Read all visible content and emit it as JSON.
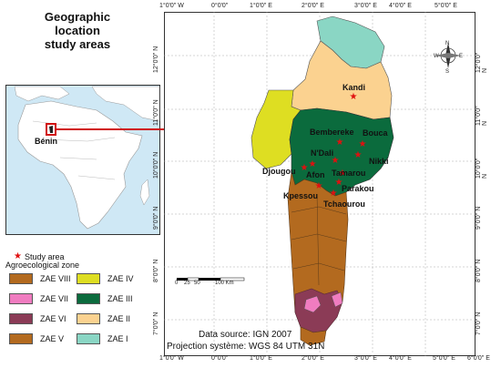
{
  "title_line1": "Geographic location",
  "title_line2": "study areas",
  "inset_label": "Bénin",
  "coords_top": [
    "1°0'0\" W",
    "0°0'0\"",
    "1°0'0\" E",
    "2°0'0\" E",
    "3°0'0\" E",
    "4°0'0\" E",
    "5°0'0\" E"
  ],
  "coords_bottom": [
    "1°0'0\" W",
    "0°0'0\"",
    "1°0'0\" E",
    "2°0'0\" E",
    "3°0'0\" E",
    "4°0'0\" E",
    "5°0'0\" E",
    "6°0'0\" E"
  ],
  "coords_left": [
    "12°0'0\" N",
    "11°0'0\" N",
    "10°0'0\" N",
    "9°0'0\" N",
    "8°0'0\" N",
    "7°0'0\" N"
  ],
  "coords_right": [
    "12°0'0\" N",
    "11°0'0\" N",
    "10°0'0\" N",
    "9°0'0\" N",
    "8°0'0\" N",
    "7°0'0\" N"
  ],
  "cities": [
    "Kandi",
    "Bembereke",
    "Bouca",
    "N'Dali",
    "Nikki",
    "Djougou",
    "Afon",
    "Tamarou",
    "Parakou",
    "Kpessou",
    "Tchaourou"
  ],
  "scale": {
    "ticks": [
      "0",
      "25",
      "50",
      "100 Km"
    ]
  },
  "compass": {
    "n": "N",
    "s": "S",
    "e": "E",
    "w": "W"
  },
  "legend": {
    "study_area": "Study area",
    "zone_title": "Agroecological zone",
    "items": [
      {
        "label": "ZAE VIII",
        "color": "#b36a1f"
      },
      {
        "label": "ZAE IV",
        "color": "#dede22"
      },
      {
        "label": "ZAE VII",
        "color": "#f07cc0"
      },
      {
        "label": "ZAE III",
        "color": "#0b6b3d"
      },
      {
        "label": "ZAE VI",
        "color": "#8b3b56"
      },
      {
        "label": "ZAE II",
        "color": "#fbd290"
      },
      {
        "label": "ZAE V",
        "color": "#b36a1f"
      },
      {
        "label": "ZAE I",
        "color": "#8ad6c4"
      }
    ]
  },
  "data_source": "Data source: IGN 2007",
  "projection": "Projection système: WGS 84 UTM 31N"
}
